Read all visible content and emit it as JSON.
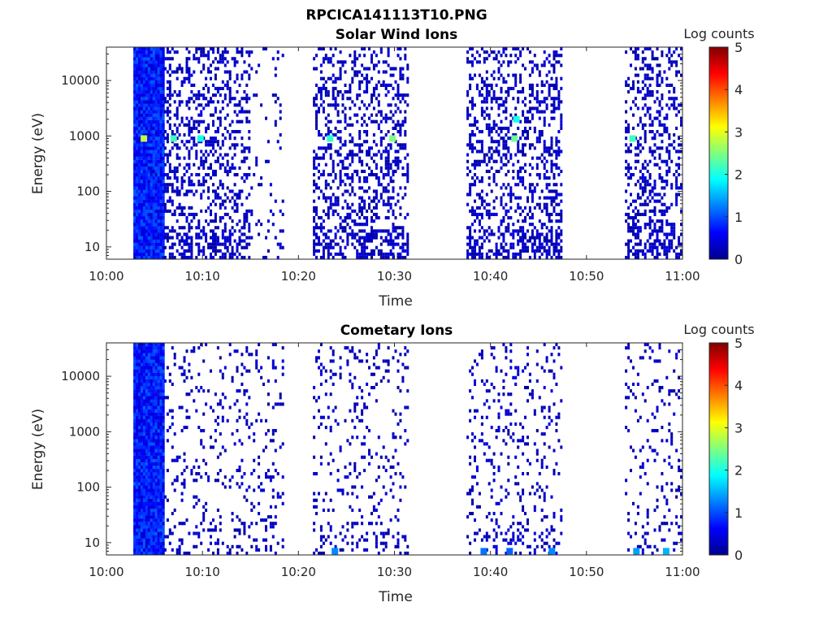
{
  "figure_title": "RPCICA141113T10.PNG",
  "chart_data": [
    {
      "type": "heatmap",
      "title": "Solar Wind Ions",
      "xlabel": "Time",
      "ylabel": "Energy (eV)",
      "x_ticks": [
        "10:00",
        "10:10",
        "10:20",
        "10:30",
        "10:40",
        "10:50",
        "11:00"
      ],
      "xlim_minutes": [
        0,
        60
      ],
      "y_ticks": [
        "10",
        "100",
        "1000",
        "10000"
      ],
      "y_scale": "log",
      "ylim": [
        6,
        40000
      ],
      "colorbar": {
        "label": "Log counts",
        "ticks": [
          "0",
          "1",
          "2",
          "3",
          "4",
          "5"
        ],
        "range": [
          0,
          5
        ],
        "colormap": "jet"
      },
      "data_intervals_minutes": [
        [
          2.8,
          6.0
        ],
        [
          6.0,
          15.0
        ],
        [
          15.0,
          18.5
        ],
        [
          21.5,
          31.5
        ],
        [
          37.5,
          47.5
        ],
        [
          54.0,
          60.0
        ]
      ],
      "hotspots": [
        {
          "minute": 3.9,
          "energy_ev": 900,
          "log_counts": 2.8
        },
        {
          "minute": 7.0,
          "energy_ev": 900,
          "log_counts": 2.2
        },
        {
          "minute": 9.8,
          "energy_ev": 900,
          "log_counts": 2.0
        },
        {
          "minute": 23.3,
          "energy_ev": 900,
          "log_counts": 2.1
        },
        {
          "minute": 29.8,
          "energy_ev": 900,
          "log_counts": 2.5
        },
        {
          "minute": 42.5,
          "energy_ev": 900,
          "log_counts": 2.4
        },
        {
          "minute": 42.7,
          "energy_ev": 2000,
          "log_counts": 2.0
        },
        {
          "minute": 54.8,
          "energy_ev": 900,
          "log_counts": 2.2
        }
      ]
    },
    {
      "type": "heatmap",
      "title": "Cometary Ions",
      "xlabel": "Time",
      "ylabel": "Energy (eV)",
      "x_ticks": [
        "10:00",
        "10:10",
        "10:20",
        "10:30",
        "10:40",
        "10:50",
        "11:00"
      ],
      "xlim_minutes": [
        0,
        60
      ],
      "y_ticks": [
        "10",
        "100",
        "1000",
        "10000"
      ],
      "y_scale": "log",
      "ylim": [
        6,
        40000
      ],
      "colorbar": {
        "label": "Log counts",
        "ticks": [
          "0",
          "1",
          "2",
          "3",
          "4",
          "5"
        ],
        "range": [
          0,
          5
        ],
        "colormap": "jet"
      },
      "data_intervals_minutes": [
        [
          2.8,
          6.0
        ],
        [
          6.0,
          15.0
        ],
        [
          15.0,
          18.5
        ],
        [
          21.5,
          31.5
        ],
        [
          37.5,
          47.5
        ],
        [
          54.0,
          60.0
        ]
      ],
      "hotspots": [
        {
          "minute": 23.8,
          "energy_ev": 7,
          "log_counts": 1.3
        },
        {
          "minute": 39.3,
          "energy_ev": 7,
          "log_counts": 1.2
        },
        {
          "minute": 42.0,
          "energy_ev": 7,
          "log_counts": 1.1
        },
        {
          "minute": 46.4,
          "energy_ev": 7,
          "log_counts": 1.3
        },
        {
          "minute": 55.2,
          "energy_ev": 7,
          "log_counts": 1.4
        },
        {
          "minute": 58.3,
          "energy_ev": 7,
          "log_counts": 1.5
        }
      ]
    }
  ]
}
